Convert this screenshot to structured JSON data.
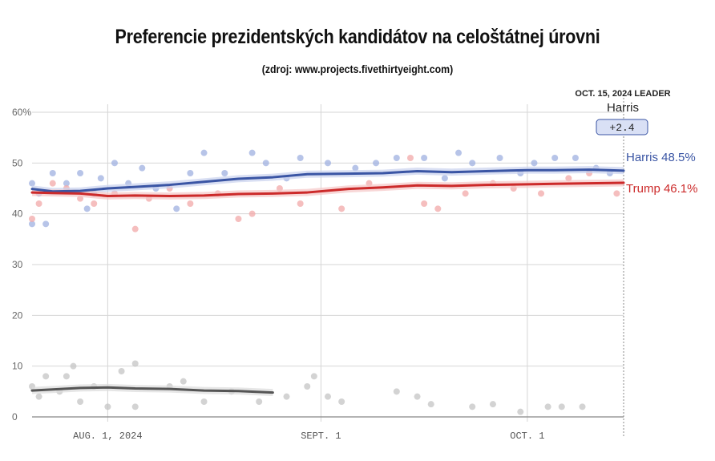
{
  "title": "Preferencie prezidentských kandidátov na celoštátnej úrovni",
  "subtitle": "(zdroj: www.projects.fivethirtyeight.com)",
  "leader_box": {
    "header": "OCT. 15, 2024 LEADER",
    "name": "Harris",
    "margin": "+2.4"
  },
  "colors": {
    "harris": "#3a55a4",
    "trump": "#cc2a2a",
    "other": "#555555",
    "grid": "#d6d6d6"
  },
  "chart_data": {
    "type": "line",
    "title": "Preferencie prezidentských kandidátov na celoštátnej úrovni",
    "ylim": [
      0,
      60
    ],
    "y_ticks": [
      0,
      10,
      20,
      30,
      40,
      50,
      60
    ],
    "y_tick_labels": [
      "0",
      "10",
      "20",
      "30",
      "40",
      "50",
      "60%"
    ],
    "x_ticks": [
      {
        "date": "2024-08-01",
        "label": "AUG. 1, 2024"
      },
      {
        "date": "2024-09-01",
        "label": "SEPT. 1"
      },
      {
        "date": "2024-10-01",
        "label": "OCT. 1"
      }
    ],
    "x_range": [
      "2024-07-21",
      "2024-10-15"
    ],
    "grid": true,
    "series": [
      {
        "name": "Harris",
        "end_label": "Harris 48.5%",
        "points": [
          [
            "2024-07-21",
            44.9
          ],
          [
            "2024-07-24",
            44.4
          ],
          [
            "2024-07-28",
            44.5
          ],
          [
            "2024-08-01",
            45.0
          ],
          [
            "2024-08-05",
            45.3
          ],
          [
            "2024-08-10",
            45.7
          ],
          [
            "2024-08-15",
            46.3
          ],
          [
            "2024-08-20",
            46.9
          ],
          [
            "2024-08-25",
            47.2
          ],
          [
            "2024-08-30",
            47.8
          ],
          [
            "2024-09-05",
            47.9
          ],
          [
            "2024-09-10",
            48.0
          ],
          [
            "2024-09-15",
            48.4
          ],
          [
            "2024-09-20",
            48.2
          ],
          [
            "2024-09-25",
            48.4
          ],
          [
            "2024-10-01",
            48.6
          ],
          [
            "2024-10-05",
            48.6
          ],
          [
            "2024-10-10",
            48.7
          ],
          [
            "2024-10-15",
            48.5
          ]
        ]
      },
      {
        "name": "Trump",
        "end_label": "Trump 46.1%",
        "points": [
          [
            "2024-07-21",
            44.2
          ],
          [
            "2024-07-24",
            44.1
          ],
          [
            "2024-07-28",
            44.0
          ],
          [
            "2024-08-01",
            43.5
          ],
          [
            "2024-08-05",
            43.6
          ],
          [
            "2024-08-10",
            43.5
          ],
          [
            "2024-08-15",
            43.6
          ],
          [
            "2024-08-20",
            43.9
          ],
          [
            "2024-08-25",
            44.0
          ],
          [
            "2024-08-30",
            44.2
          ],
          [
            "2024-09-05",
            44.9
          ],
          [
            "2024-09-10",
            45.2
          ],
          [
            "2024-09-15",
            45.6
          ],
          [
            "2024-09-20",
            45.5
          ],
          [
            "2024-09-25",
            45.7
          ],
          [
            "2024-10-01",
            45.8
          ],
          [
            "2024-10-05",
            45.9
          ],
          [
            "2024-10-10",
            46.0
          ],
          [
            "2024-10-15",
            46.1
          ]
        ]
      },
      {
        "points": [
          [
            "2024-07-21",
            5.2
          ],
          [
            "2024-07-24",
            5.4
          ],
          [
            "2024-07-28",
            5.7
          ],
          [
            "2024-08-01",
            5.8
          ],
          [
            "2024-08-05",
            5.6
          ],
          [
            "2024-08-10",
            5.5
          ],
          [
            "2024-08-15",
            5.2
          ],
          [
            "2024-08-20",
            5.1
          ],
          [
            "2024-08-25",
            4.8
          ]
        ]
      }
    ],
    "poll_dots": {
      "harris": [
        [
          "2024-07-21",
          46
        ],
        [
          "2024-07-21",
          38
        ],
        [
          "2024-07-22",
          44
        ],
        [
          "2024-07-23",
          38
        ],
        [
          "2024-07-24",
          48
        ],
        [
          "2024-07-26",
          46
        ],
        [
          "2024-07-28",
          48
        ],
        [
          "2024-07-29",
          41
        ],
        [
          "2024-07-30",
          44
        ],
        [
          "2024-07-31",
          47
        ],
        [
          "2024-08-02",
          50
        ],
        [
          "2024-08-04",
          46
        ],
        [
          "2024-08-06",
          49
        ],
        [
          "2024-08-08",
          45
        ],
        [
          "2024-08-11",
          41
        ],
        [
          "2024-08-13",
          48
        ],
        [
          "2024-08-15",
          52
        ],
        [
          "2024-08-18",
          48
        ],
        [
          "2024-08-22",
          52
        ],
        [
          "2024-08-24",
          50
        ],
        [
          "2024-08-27",
          47
        ],
        [
          "2024-08-29",
          51
        ],
        [
          "2024-09-02",
          50
        ],
        [
          "2024-09-06",
          49
        ],
        [
          "2024-09-09",
          50
        ],
        [
          "2024-09-12",
          51
        ],
        [
          "2024-09-16",
          51
        ],
        [
          "2024-09-19",
          47
        ],
        [
          "2024-09-21",
          52
        ],
        [
          "2024-09-23",
          50
        ],
        [
          "2024-09-27",
          51
        ],
        [
          "2024-09-30",
          48
        ],
        [
          "2024-10-02",
          50
        ],
        [
          "2024-10-05",
          51
        ],
        [
          "2024-10-08",
          51
        ],
        [
          "2024-10-11",
          49
        ],
        [
          "2024-10-13",
          48
        ]
      ],
      "trump": [
        [
          "2024-07-21",
          39
        ],
        [
          "2024-07-22",
          42
        ],
        [
          "2024-07-24",
          46
        ],
        [
          "2024-07-26",
          45
        ],
        [
          "2024-07-28",
          43
        ],
        [
          "2024-07-30",
          42
        ],
        [
          "2024-08-02",
          44
        ],
        [
          "2024-08-05",
          37
        ],
        [
          "2024-08-07",
          43
        ],
        [
          "2024-08-10",
          45
        ],
        [
          "2024-08-13",
          42
        ],
        [
          "2024-08-17",
          44
        ],
        [
          "2024-08-20",
          39
        ],
        [
          "2024-08-22",
          40
        ],
        [
          "2024-08-26",
          45
        ],
        [
          "2024-08-29",
          42
        ],
        [
          "2024-09-04",
          41
        ],
        [
          "2024-09-08",
          46
        ],
        [
          "2024-09-14",
          51
        ],
        [
          "2024-09-16",
          42
        ],
        [
          "2024-09-18",
          41
        ],
        [
          "2024-09-22",
          44
        ],
        [
          "2024-09-26",
          46
        ],
        [
          "2024-09-29",
          45
        ],
        [
          "2024-10-03",
          44
        ],
        [
          "2024-10-07",
          47
        ],
        [
          "2024-10-10",
          48
        ],
        [
          "2024-10-14",
          44
        ]
      ],
      "other": [
        [
          "2024-07-21",
          6
        ],
        [
          "2024-07-22",
          4
        ],
        [
          "2024-07-23",
          8
        ],
        [
          "2024-07-25",
          5
        ],
        [
          "2024-07-26",
          8
        ],
        [
          "2024-07-27",
          10
        ],
        [
          "2024-07-28",
          3
        ],
        [
          "2024-07-30",
          6
        ],
        [
          "2024-08-01",
          2
        ],
        [
          "2024-08-03",
          9
        ],
        [
          "2024-08-05",
          10.5
        ],
        [
          "2024-08-05",
          2
        ],
        [
          "2024-08-10",
          6
        ],
        [
          "2024-08-12",
          7
        ],
        [
          "2024-08-15",
          3
        ],
        [
          "2024-08-19",
          5
        ],
        [
          "2024-08-23",
          3
        ],
        [
          "2024-08-27",
          4
        ],
        [
          "2024-08-30",
          6
        ],
        [
          "2024-08-31",
          8
        ],
        [
          "2024-09-02",
          4
        ],
        [
          "2024-09-04",
          3
        ],
        [
          "2024-09-12",
          5
        ],
        [
          "2024-09-15",
          4
        ],
        [
          "2024-09-17",
          2.5
        ],
        [
          "2024-09-23",
          2
        ],
        [
          "2024-09-26",
          2.5
        ],
        [
          "2024-09-30",
          1
        ],
        [
          "2024-10-04",
          2
        ],
        [
          "2024-10-06",
          2
        ],
        [
          "2024-10-09",
          2
        ]
      ]
    }
  }
}
